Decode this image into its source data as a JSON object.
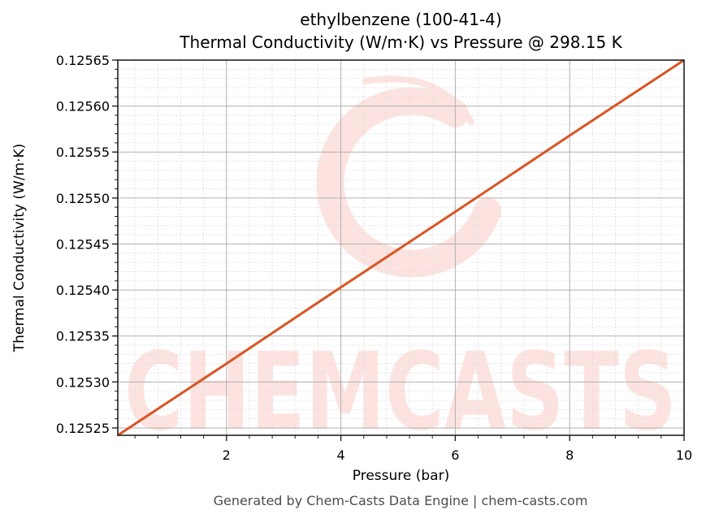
{
  "chart_data": {
    "type": "line",
    "title": "ethylbenzene (100-41-4)",
    "subtitle": "Thermal Conductivity (W/m·K) vs Pressure @ 298.15 K",
    "xlabel": "Pressure (bar)",
    "ylabel": "Thermal Conductivity (W/m·K)",
    "xlim": [
      0.1,
      10
    ],
    "ylim": [
      0.125242,
      0.12565
    ],
    "x_ticks": [
      2,
      4,
      6,
      8,
      10
    ],
    "x_tick_labels": [
      "2",
      "4",
      "6",
      "8",
      "10"
    ],
    "y_ticks": [
      0.12525,
      0.1253,
      0.12535,
      0.1254,
      0.12545,
      0.1255,
      0.12555,
      0.1256,
      0.12565
    ],
    "y_tick_labels": [
      "0.12525",
      "0.12530",
      "0.12535",
      "0.12540",
      "0.12545",
      "0.12550",
      "0.12555",
      "0.12560",
      "0.12565"
    ],
    "grid": true,
    "minor_grid": true,
    "legend": null,
    "series": [
      {
        "name": "Thermal Conductivity",
        "color": "#d95423",
        "x": [
          0.1,
          2,
          4,
          6,
          8,
          10
        ],
        "y": [
          0.125242,
          0.12532,
          0.125403,
          0.125485,
          0.125568,
          0.12565
        ]
      }
    ]
  },
  "watermark": {
    "text": "CHEMCASTS",
    "color": "#fde3e0"
  },
  "footer": "Generated by Chem-Casts Data Engine | chem-casts.com",
  "colors": {
    "line": "#d95423",
    "grid_major": "#b0b0b0",
    "grid_minor": "#dddddd",
    "axes": "#222222",
    "watermark": "#fde3e0"
  }
}
